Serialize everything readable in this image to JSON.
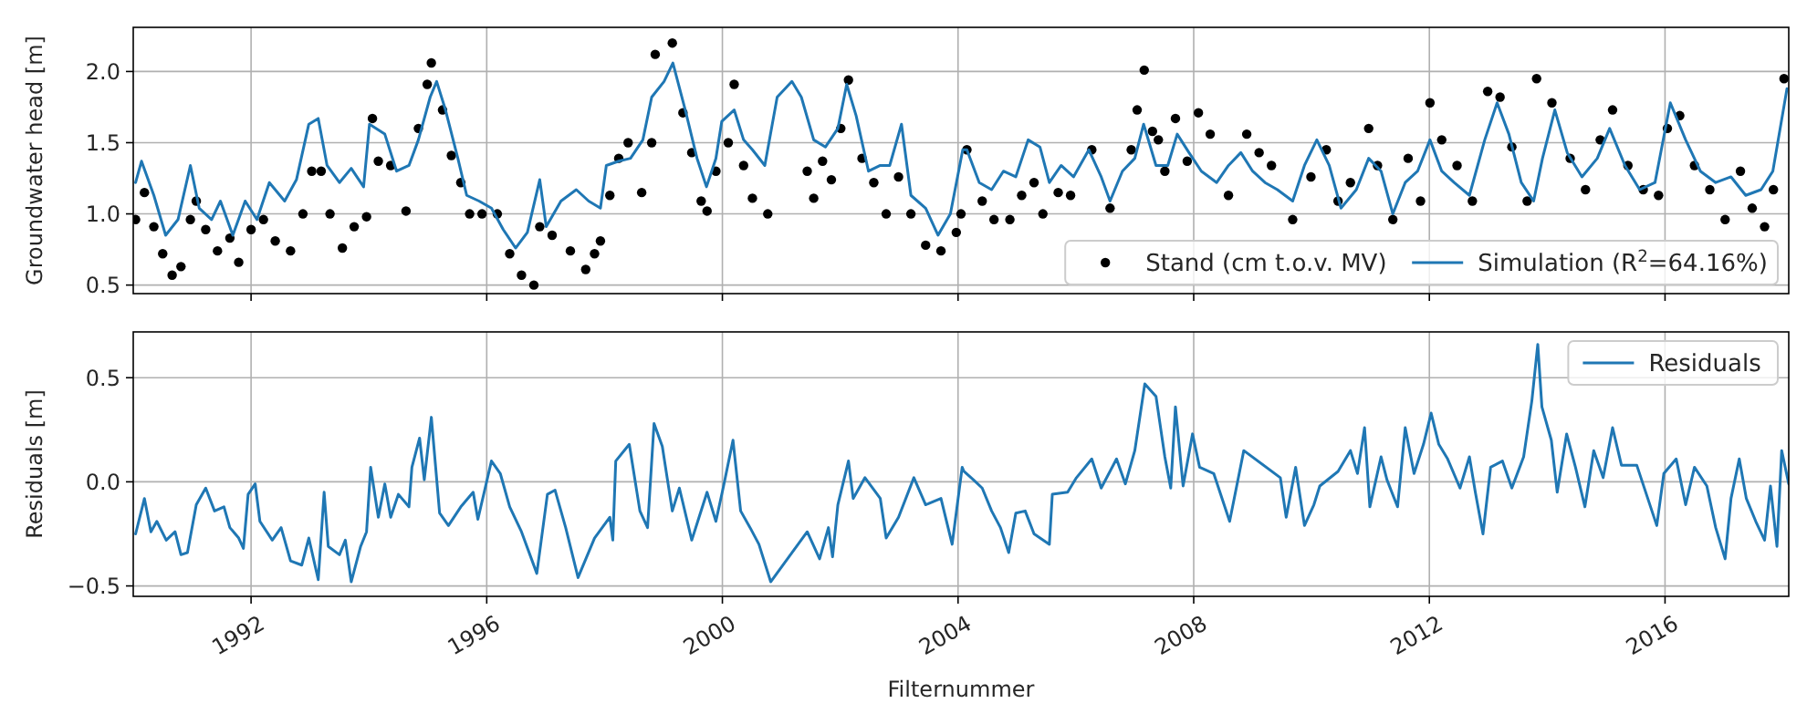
{
  "chart_data": [
    {
      "type": "line",
      "ylabel": "Groundwater head [m]",
      "xlim": [
        1990.0,
        2018.1
      ],
      "xticks": [
        1992,
        1996,
        2000,
        2004,
        2008,
        2012,
        2016
      ],
      "ylim": [
        0.44,
        2.31
      ],
      "yticks": [
        {
          "value": 0.5,
          "label": "0.5"
        },
        {
          "value": 1,
          "label": "1.0"
        },
        {
          "value": 1.5,
          "label": "1.5"
        },
        {
          "value": 2,
          "label": "2.0"
        }
      ],
      "grid": true,
      "legend": "bottom right",
      "tick_labels": "y",
      "series": [
        {
          "name": "Stand (cm t.o.v. MV)",
          "type": "scatter",
          "marker": "circle",
          "color": "#000000",
          "x": [
            1990.04,
            1990.19,
            1990.35,
            1990.5,
            1990.66,
            1990.81,
            1990.97,
            1991.07,
            1991.23,
            1991.43,
            1991.64,
            1991.79,
            1992.0,
            1992.21,
            1992.41,
            1992.67,
            1992.88,
            1993.03,
            1993.19,
            1993.34,
            1993.55,
            1993.75,
            1993.96,
            1994.06,
            1994.16,
            1994.37,
            1994.63,
            1994.84,
            1994.99,
            1995.06,
            1995.25,
            1995.4,
            1995.56,
            1995.71,
            1995.92,
            1996.18,
            1996.39,
            1996.59,
            1996.8,
            1996.9,
            1997.11,
            1997.42,
            1997.68,
            1997.83,
            1997.93,
            1998.09,
            1998.24,
            1998.4,
            1998.63,
            1998.8,
            1998.86,
            1999.15,
            1999.33,
            1999.48,
            1999.64,
            1999.74,
            1999.89,
            2000.1,
            2000.2,
            2000.36,
            2000.51,
            2000.77,
            2001.44,
            2001.55,
            2001.7,
            2001.85,
            2002.01,
            2002.14,
            2002.37,
            2002.57,
            2002.78,
            2002.99,
            2003.2,
            2003.45,
            2003.71,
            2003.97,
            2004.05,
            2004.15,
            2004.41,
            2004.61,
            2004.88,
            2005.08,
            2005.29,
            2005.44,
            2005.7,
            2005.91,
            2006.27,
            2006.58,
            2006.94,
            2007.04,
            2007.16,
            2007.3,
            2007.4,
            2007.51,
            2007.69,
            2007.89,
            2008.08,
            2008.28,
            2008.59,
            2008.9,
            2009.11,
            2009.32,
            2009.68,
            2009.99,
            2010.25,
            2010.45,
            2010.66,
            2010.97,
            2011.12,
            2011.38,
            2011.64,
            2011.85,
            2012.01,
            2012.21,
            2012.47,
            2012.73,
            2012.99,
            2013.2,
            2013.4,
            2013.66,
            2013.82,
            2014.08,
            2014.39,
            2014.65,
            2014.9,
            2015.11,
            2015.37,
            2015.63,
            2015.89,
            2016.04,
            2016.25,
            2016.5,
            2016.76,
            2017.02,
            2017.28,
            2017.48,
            2017.69,
            2017.84,
            2018.02
          ],
          "values": [
            0.96,
            1.15,
            0.91,
            0.72,
            0.57,
            0.63,
            0.96,
            1.09,
            0.89,
            0.74,
            0.83,
            0.66,
            0.89,
            0.96,
            0.81,
            0.74,
            1.0,
            1.3,
            1.3,
            1.0,
            0.76,
            0.91,
            0.98,
            1.67,
            1.37,
            1.34,
            1.02,
            1.6,
            1.91,
            2.06,
            1.73,
            1.41,
            1.22,
            1.0,
            1.0,
            1.0,
            0.72,
            0.57,
            0.5,
            0.91,
            0.85,
            0.74,
            0.61,
            0.72,
            0.81,
            1.13,
            1.39,
            1.5,
            1.15,
            1.5,
            2.12,
            2.2,
            1.71,
            1.43,
            1.09,
            1.02,
            1.3,
            1.5,
            1.91,
            1.34,
            1.11,
            1.0,
            1.3,
            1.11,
            1.37,
            1.24,
            1.6,
            1.94,
            1.39,
            1.22,
            1.0,
            1.26,
            1.0,
            0.78,
            0.74,
            0.87,
            1.0,
            1.45,
            1.09,
            0.96,
            0.96,
            1.13,
            1.22,
            1.0,
            1.15,
            1.13,
            1.45,
            1.04,
            1.45,
            1.73,
            2.01,
            1.58,
            1.52,
            1.3,
            1.67,
            1.37,
            1.71,
            1.56,
            1.13,
            1.56,
            1.43,
            1.34,
            0.96,
            1.26,
            1.45,
            1.09,
            1.22,
            1.6,
            1.34,
            0.96,
            1.39,
            1.09,
            1.78,
            1.52,
            1.34,
            1.09,
            1.86,
            1.82,
            1.47,
            1.09,
            1.95,
            1.78,
            1.39,
            1.17,
            1.52,
            1.73,
            1.34,
            1.17,
            1.13,
            1.6,
            1.69,
            1.34,
            1.17,
            0.96,
            1.3,
            1.04,
            0.91,
            1.17,
            1.95
          ]
        },
        {
          "name": "Simulation (R$^{2}$=64.16%)",
          "type": "line",
          "color": "#1f77b4",
          "x": [
            1990.04,
            1990.14,
            1990.35,
            1990.55,
            1990.76,
            1990.97,
            1991.12,
            1991.33,
            1991.48,
            1991.69,
            1991.9,
            1992.1,
            1992.31,
            1992.57,
            1992.77,
            1992.98,
            1993.14,
            1993.29,
            1993.5,
            1993.7,
            1993.91,
            1994.01,
            1994.27,
            1994.47,
            1994.68,
            1994.84,
            1995.04,
            1995.15,
            1995.3,
            1995.51,
            1995.66,
            1995.87,
            1996.08,
            1996.28,
            1996.49,
            1996.69,
            1996.9,
            1997.01,
            1997.26,
            1997.52,
            1997.73,
            1997.93,
            1998.03,
            1998.24,
            1998.44,
            1998.65,
            1998.8,
            1999.01,
            1999.16,
            1999.37,
            1999.57,
            1999.73,
            1999.89,
            1999.99,
            2000.2,
            2000.36,
            2000.51,
            2000.72,
            2000.93,
            2001.18,
            2001.34,
            2001.55,
            2001.75,
            2001.96,
            2002.11,
            2002.27,
            2002.48,
            2002.68,
            2002.84,
            2003.04,
            2003.2,
            2003.45,
            2003.66,
            2003.87,
            2004.08,
            2004.15,
            2004.36,
            2004.57,
            2004.77,
            2004.98,
            2005.19,
            2005.39,
            2005.55,
            2005.75,
            2005.96,
            2006.22,
            2006.43,
            2006.58,
            2006.79,
            2007.0,
            2007.15,
            2007.36,
            2007.56,
            2007.72,
            2007.92,
            2008.13,
            2008.39,
            2008.59,
            2008.8,
            2009.0,
            2009.21,
            2009.42,
            2009.68,
            2009.88,
            2010.09,
            2010.3,
            2010.5,
            2010.76,
            2010.97,
            2011.18,
            2011.38,
            2011.59,
            2011.8,
            2012.01,
            2012.21,
            2012.42,
            2012.68,
            2012.94,
            2013.15,
            2013.35,
            2013.56,
            2013.77,
            2013.92,
            2014.13,
            2014.34,
            2014.59,
            2014.85,
            2015.06,
            2015.32,
            2015.57,
            2015.83,
            2016.09,
            2016.35,
            2016.6,
            2016.86,
            2017.12,
            2017.37,
            2017.63,
            2017.83,
            2018.07
          ],
          "values": [
            1.22,
            1.37,
            1.13,
            0.85,
            0.96,
            1.34,
            1.04,
            0.96,
            1.09,
            0.85,
            1.09,
            0.96,
            1.22,
            1.09,
            1.24,
            1.63,
            1.67,
            1.34,
            1.22,
            1.32,
            1.19,
            1.63,
            1.56,
            1.3,
            1.34,
            1.52,
            1.82,
            1.93,
            1.73,
            1.39,
            1.13,
            1.09,
            1.04,
            0.89,
            0.76,
            0.87,
            1.24,
            0.91,
            1.09,
            1.17,
            1.09,
            1.04,
            1.34,
            1.37,
            1.39,
            1.52,
            1.82,
            1.93,
            2.06,
            1.73,
            1.39,
            1.19,
            1.39,
            1.65,
            1.73,
            1.52,
            1.45,
            1.34,
            1.82,
            1.93,
            1.82,
            1.52,
            1.47,
            1.6,
            1.91,
            1.69,
            1.3,
            1.34,
            1.34,
            1.63,
            1.13,
            1.04,
            0.85,
            1.0,
            1.45,
            1.45,
            1.22,
            1.17,
            1.3,
            1.26,
            1.52,
            1.47,
            1.22,
            1.34,
            1.26,
            1.45,
            1.26,
            1.09,
            1.3,
            1.39,
            1.63,
            1.34,
            1.34,
            1.56,
            1.43,
            1.3,
            1.22,
            1.34,
            1.43,
            1.3,
            1.22,
            1.17,
            1.09,
            1.34,
            1.52,
            1.34,
            1.04,
            1.17,
            1.39,
            1.3,
            1.0,
            1.22,
            1.3,
            1.52,
            1.3,
            1.22,
            1.13,
            1.52,
            1.78,
            1.56,
            1.22,
            1.09,
            1.39,
            1.73,
            1.43,
            1.26,
            1.39,
            1.6,
            1.34,
            1.17,
            1.22,
            1.78,
            1.52,
            1.3,
            1.22,
            1.26,
            1.13,
            1.17,
            1.3,
            1.88
          ]
        }
      ]
    },
    {
      "type": "line",
      "xlabel": "Filternummer",
      "ylabel": "Residuals [m]",
      "xlim": [
        1990.0,
        2018.1
      ],
      "xticks": [
        {
          "value": 1992,
          "label": "1992"
        },
        {
          "value": 1996,
          "label": "1996"
        },
        {
          "value": 2000,
          "label": "2000"
        },
        {
          "value": 2004,
          "label": "2004"
        },
        {
          "value": 2008,
          "label": "2008"
        },
        {
          "value": 2012,
          "label": "2012"
        },
        {
          "value": 2016,
          "label": "2016"
        }
      ],
      "ylim": [
        -0.55,
        0.72
      ],
      "yticks": [
        {
          "value": -0.5,
          "label": "−0.5"
        },
        {
          "value": 0,
          "label": "0.0"
        },
        {
          "value": 0.5,
          "label": "0.5"
        }
      ],
      "grid": true,
      "legend": "top right",
      "series": [
        {
          "name": "Residuals",
          "type": "line",
          "color": "#1f77b4",
          "x": [
            1990.04,
            1990.19,
            1990.3,
            1990.4,
            1990.56,
            1990.71,
            1990.81,
            1990.92,
            1991.07,
            1991.23,
            1991.38,
            1991.54,
            1991.64,
            1991.79,
            1991.87,
            1991.95,
            1992.07,
            1992.15,
            1992.36,
            1992.51,
            1992.67,
            1992.86,
            1992.98,
            1993.14,
            1993.24,
            1993.31,
            1993.5,
            1993.6,
            1993.7,
            1993.86,
            1993.96,
            1994.03,
            1994.16,
            1994.27,
            1994.37,
            1994.5,
            1994.68,
            1994.73,
            1994.86,
            1994.94,
            1995.06,
            1995.2,
            1995.35,
            1995.56,
            1995.77,
            1995.85,
            1996.08,
            1996.23,
            1996.39,
            1996.59,
            1996.85,
            1997.03,
            1997.16,
            1997.34,
            1997.55,
            1997.83,
            1998.09,
            1998.14,
            1998.19,
            1998.42,
            1998.6,
            1998.73,
            1998.84,
            1998.98,
            1999.15,
            1999.27,
            1999.48,
            1999.74,
            1999.89,
            2000.02,
            2000.18,
            2000.31,
            2000.47,
            2000.62,
            2000.82,
            2001.44,
            2001.65,
            2001.8,
            2001.87,
            2001.96,
            2002.14,
            2002.22,
            2002.42,
            2002.68,
            2002.78,
            2002.99,
            2003.25,
            2003.45,
            2003.71,
            2003.9,
            2004.07,
            2004.1,
            2004.26,
            2004.41,
            2004.57,
            2004.72,
            2004.86,
            2004.98,
            2005.14,
            2005.29,
            2005.55,
            2005.6,
            2005.86,
            2006.01,
            2006.27,
            2006.43,
            2006.69,
            2006.84,
            2007.0,
            2007.17,
            2007.36,
            2007.51,
            2007.61,
            2007.69,
            2007.82,
            2007.98,
            2008.1,
            2008.34,
            2008.61,
            2008.85,
            2009.47,
            2009.57,
            2009.73,
            2009.88,
            2010.04,
            2010.14,
            2010.45,
            2010.66,
            2010.78,
            2010.9,
            2010.99,
            2011.18,
            2011.28,
            2011.46,
            2011.59,
            2011.74,
            2011.9,
            2012.03,
            2012.16,
            2012.31,
            2012.52,
            2012.68,
            2012.78,
            2012.91,
            2013.04,
            2013.24,
            2013.4,
            2013.6,
            2013.74,
            2013.84,
            2013.91,
            2014.07,
            2014.17,
            2014.33,
            2014.48,
            2014.64,
            2014.79,
            2014.95,
            2015.11,
            2015.26,
            2015.52,
            2015.86,
            2015.98,
            2016.19,
            2016.35,
            2016.5,
            2016.71,
            2016.86,
            2017.02,
            2017.12,
            2017.26,
            2017.38,
            2017.54,
            2017.69,
            2017.79,
            2017.9,
            2017.98,
            2018.1
          ],
          "values": [
            -0.25,
            -0.08,
            -0.24,
            -0.19,
            -0.28,
            -0.24,
            -0.35,
            -0.34,
            -0.11,
            -0.03,
            -0.14,
            -0.12,
            -0.22,
            -0.27,
            -0.32,
            -0.06,
            -0.01,
            -0.19,
            -0.28,
            -0.22,
            -0.38,
            -0.4,
            -0.27,
            -0.47,
            -0.05,
            -0.31,
            -0.35,
            -0.28,
            -0.48,
            -0.31,
            -0.24,
            0.07,
            -0.17,
            -0.01,
            -0.17,
            -0.06,
            -0.12,
            0.07,
            0.21,
            0.01,
            0.31,
            -0.15,
            -0.21,
            -0.12,
            -0.05,
            -0.18,
            0.1,
            0.04,
            -0.12,
            -0.24,
            -0.44,
            -0.06,
            -0.04,
            -0.22,
            -0.46,
            -0.27,
            -0.17,
            -0.28,
            0.1,
            0.18,
            -0.14,
            -0.22,
            0.28,
            0.17,
            -0.14,
            -0.03,
            -0.28,
            -0.05,
            -0.19,
            -0.02,
            0.2,
            -0.14,
            -0.22,
            -0.3,
            -0.48,
            -0.24,
            -0.37,
            -0.22,
            -0.36,
            -0.11,
            0.1,
            -0.08,
            0.02,
            -0.08,
            -0.27,
            -0.17,
            0.02,
            -0.11,
            -0.08,
            -0.3,
            0.07,
            0.05,
            0.01,
            -0.03,
            -0.14,
            -0.22,
            -0.34,
            -0.15,
            -0.14,
            -0.25,
            -0.3,
            -0.06,
            -0.05,
            0.02,
            0.11,
            -0.03,
            0.11,
            -0.01,
            0.15,
            0.47,
            0.41,
            0.12,
            -0.03,
            0.36,
            -0.02,
            0.23,
            0.07,
            0.04,
            -0.19,
            0.15,
            0.02,
            -0.17,
            0.07,
            -0.21,
            -0.11,
            -0.02,
            0.05,
            0.15,
            0.04,
            0.26,
            -0.12,
            0.12,
            0.01,
            -0.12,
            0.26,
            0.04,
            0.18,
            0.33,
            0.18,
            0.11,
            -0.03,
            0.12,
            -0.05,
            -0.25,
            0.07,
            0.1,
            -0.03,
            0.12,
            0.39,
            0.66,
            0.36,
            0.2,
            -0.05,
            0.23,
            0.07,
            -0.12,
            0.15,
            0.02,
            0.26,
            0.08,
            0.08,
            -0.21,
            0.04,
            0.11,
            -0.11,
            0.07,
            -0.02,
            -0.22,
            -0.37,
            -0.08,
            0.11,
            -0.08,
            -0.19,
            -0.28,
            -0.02,
            -0.31,
            0.15,
            -0.01
          ]
        }
      ]
    }
  ]
}
